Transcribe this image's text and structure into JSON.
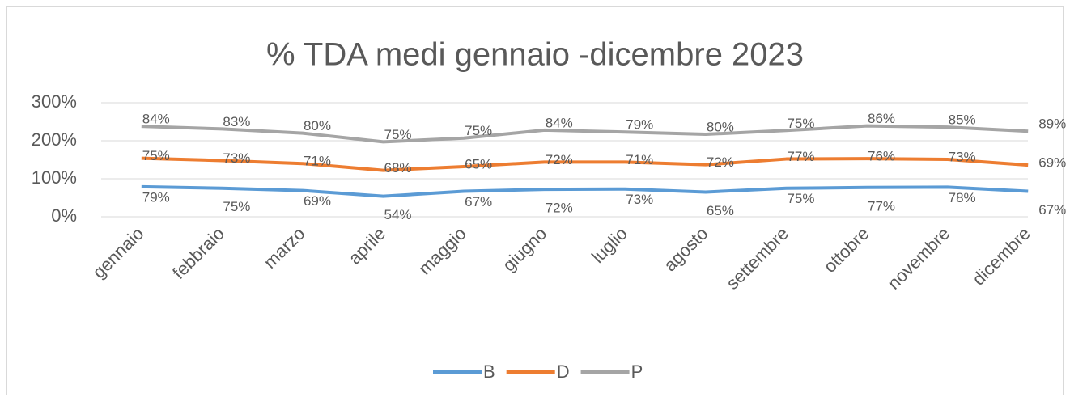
{
  "chart_data": {
    "type": "line",
    "stacked": true,
    "title": "% TDA medi  gennaio -dicembre 2023",
    "categories": [
      "gennaio",
      "febbraio",
      "marzo",
      "aprile",
      "maggio",
      "giugno",
      "luglio",
      "agosto",
      "settembre",
      "ottobre",
      "novembre",
      "dicembre"
    ],
    "series": [
      {
        "name": "B",
        "color": "#5b9bd5",
        "values": [
          79,
          75,
          69,
          54,
          67,
          72,
          73,
          65,
          75,
          77,
          78,
          67
        ],
        "value_labels": [
          "79%",
          "75%",
          "69%",
          "54%",
          "67%",
          "72%",
          "73%",
          "65%",
          "75%",
          "77%",
          "78%",
          "67%"
        ]
      },
      {
        "name": "D",
        "color": "#ed7d31",
        "values": [
          75,
          73,
          71,
          68,
          65,
          72,
          71,
          72,
          77,
          76,
          73,
          69
        ],
        "value_labels": [
          "75%",
          "73%",
          "71%",
          "68%",
          "65%",
          "72%",
          "71%",
          "72%",
          "77%",
          "76%",
          "73%",
          "69%"
        ]
      },
      {
        "name": "P",
        "color": "#a5a5a5",
        "values": [
          84,
          83,
          80,
          75,
          75,
          84,
          79,
          80,
          75,
          86,
          85,
          89
        ],
        "value_labels": [
          "84%",
          "83%",
          "80%",
          "75%",
          "75%",
          "84%",
          "79%",
          "80%",
          "75%",
          "86%",
          "85%",
          "89%"
        ]
      }
    ],
    "ylim": [
      0,
      300
    ],
    "yticks": [
      {
        "value": 0,
        "label": "0%"
      },
      {
        "value": 100,
        "label": "100%"
      },
      {
        "value": 200,
        "label": "200%"
      },
      {
        "value": 300,
        "label": "300%"
      }
    ],
    "grid": true,
    "legend": "bottom"
  }
}
